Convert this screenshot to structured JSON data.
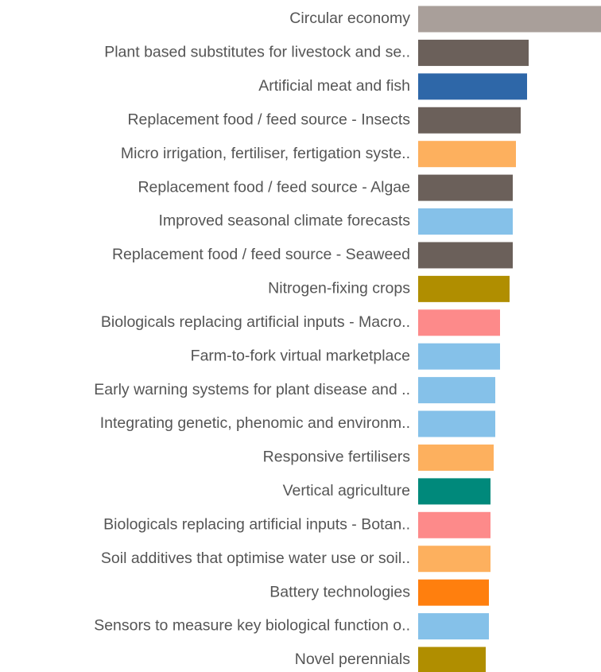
{
  "chart_data": {
    "type": "hbar",
    "categories": [
      "Circular economy",
      "Plant based substitutes for livestock and se..",
      "Artificial meat and fish",
      "Replacement food / feed source - Insects",
      "Micro irrigation, fertiliser, fertigation syste..",
      "Replacement food / feed source - Algae",
      "Improved seasonal climate forecasts",
      "Replacement food / feed source - Seaweed",
      "Nitrogen-fixing crops",
      "Biologicals replacing artificial inputs - Macro..",
      "Farm-to-fork virtual marketplace",
      "Early warning systems for plant disease and ..",
      "Integrating genetic, phenomic and environm..",
      "Responsive fertilisers",
      "Vertical agriculture",
      "Biologicals replacing artificial inputs - Botan..",
      "Soil additives that optimise water use or soil..",
      "Battery technologies",
      "Sensors to measure key biological function o..",
      "Novel perennials"
    ],
    "values": [
      230,
      139,
      137,
      129,
      123,
      119,
      119,
      119,
      115,
      103,
      103,
      97,
      97,
      95,
      91,
      91,
      91,
      89,
      89,
      85
    ],
    "colors": [
      "#a99f9a",
      "#6b605a",
      "#2e67a8",
      "#6b605a",
      "#fdb05e",
      "#6b605a",
      "#85c1e9",
      "#6b605a",
      "#b08e00",
      "#fd8a8a",
      "#85c1e9",
      "#85c1e9",
      "#85c1e9",
      "#fdb05e",
      "#00897b",
      "#fd8a8a",
      "#fdb05e",
      "#ff7f0e",
      "#85c1e9",
      "#b08e00"
    ],
    "xlim": [
      0,
      230
    ]
  }
}
